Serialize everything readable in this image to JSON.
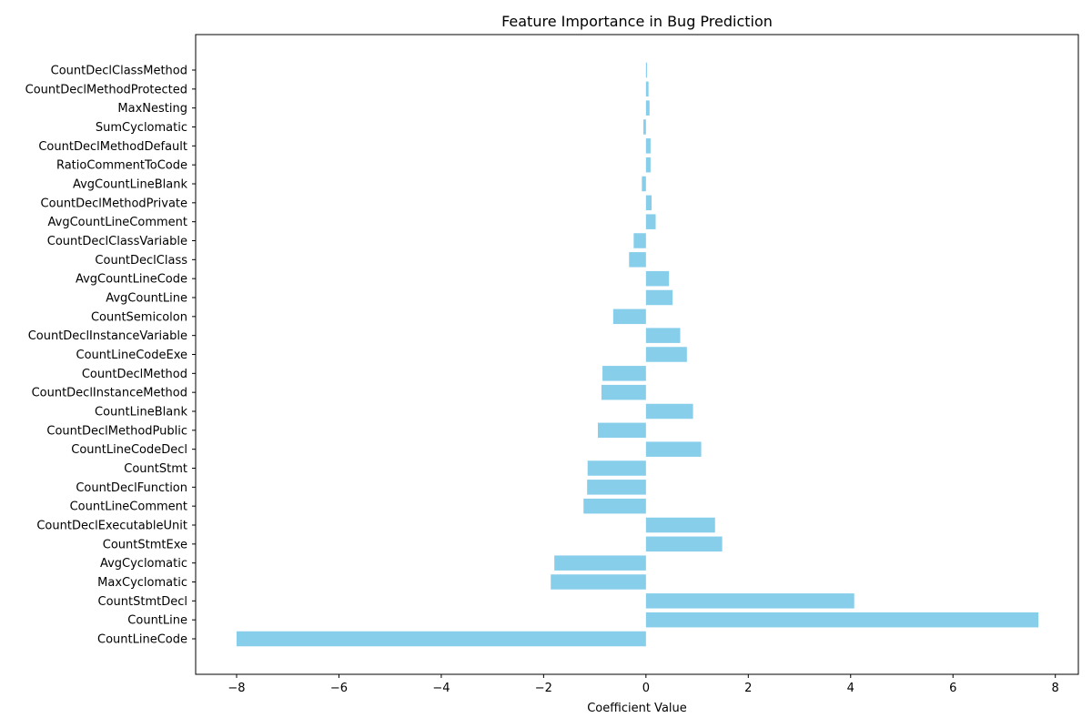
{
  "chart_data": {
    "type": "bar",
    "orientation": "horizontal",
    "title": "Feature Importance in Bug Prediction",
    "xlabel": "Coefficient Value",
    "ylabel": "",
    "xlim": [
      -8.8,
      8.45
    ],
    "xticks": [
      -8,
      -6,
      -4,
      -2,
      0,
      2,
      4,
      6,
      8
    ],
    "xtick_labels": [
      "−8",
      "−6",
      "−4",
      "−2",
      "0",
      "2",
      "4",
      "6",
      "8"
    ],
    "grid": false,
    "bar_color": "#87CEEB",
    "categories": [
      "CountLineCode",
      "CountLine",
      "CountStmtDecl",
      "MaxCyclomatic",
      "AvgCyclomatic",
      "CountStmtExe",
      "CountDeclExecutableUnit",
      "CountLineComment",
      "CountDeclFunction",
      "CountStmt",
      "CountLineCodeDecl",
      "CountDeclMethodPublic",
      "CountLineBlank",
      "CountDeclInstanceMethod",
      "CountDeclMethod",
      "CountLineCodeExe",
      "CountDeclInstanceVariable",
      "CountSemicolon",
      "AvgCountLine",
      "AvgCountLineCode",
      "CountDeclClass",
      "CountDeclClassVariable",
      "AvgCountLineComment",
      "CountDeclMethodPrivate",
      "AvgCountLineBlank",
      "RatioCommentToCode",
      "CountDeclMethodDefault",
      "SumCyclomatic",
      "MaxNesting",
      "CountDeclMethodProtected",
      "CountDeclClassMethod"
    ],
    "values": [
      -8.0,
      7.67,
      4.07,
      -1.86,
      -1.79,
      1.49,
      1.35,
      -1.22,
      -1.15,
      -1.14,
      1.08,
      -0.94,
      0.92,
      -0.87,
      -0.85,
      0.8,
      0.67,
      -0.64,
      0.52,
      0.45,
      -0.33,
      -0.24,
      0.19,
      0.11,
      -0.08,
      0.09,
      0.09,
      -0.05,
      0.07,
      0.05,
      0.02
    ]
  }
}
